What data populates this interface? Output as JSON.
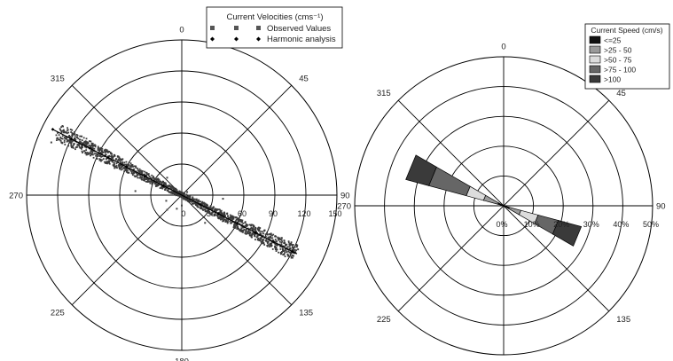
{
  "chart_data": [
    {
      "type": "scatter",
      "coordinate_system": "polar",
      "legend": {
        "title": "Current Velocities (cms⁻¹)",
        "placement": "top-right",
        "entries": [
          "Observed Values",
          "Harmonic analysis"
        ]
      },
      "direction_labels": [
        "0",
        "45",
        "90",
        "135",
        "180",
        "225",
        "270",
        "315"
      ],
      "radial_tick_labels": [
        "0",
        "30",
        "60",
        "90",
        "120",
        "150"
      ],
      "radial_range": [
        0,
        150
      ],
      "grid": true,
      "principal_axis_deg": 117,
      "series": [
        {
          "name": "Observed Values",
          "color": "#444444",
          "points": [
            [
              292,
              136
            ],
            [
              296,
              118
            ],
            [
              293,
              100
            ],
            [
              297,
              84
            ],
            [
              292,
              70
            ],
            [
              299,
              56
            ],
            [
              294,
              42
            ],
            [
              302,
              30
            ],
            [
              290,
              20
            ],
            [
              305,
              12
            ],
            [
              316,
              7
            ],
            [
              60,
              6
            ],
            [
              110,
              8
            ],
            [
              118,
              18
            ],
            [
              114,
              30
            ],
            [
              120,
              42
            ],
            [
              116,
              54
            ],
            [
              119,
              66
            ],
            [
              115,
              78
            ],
            [
              121,
              90
            ],
            [
              116,
              102
            ],
            [
              119,
              114
            ],
            [
              115,
              124
            ],
            [
              180,
              10
            ],
            [
              200,
              14
            ],
            [
              250,
              16
            ],
            [
              320,
              22
            ],
            [
              140,
              35
            ],
            [
              95,
              40
            ],
            [
              275,
              45
            ],
            [
              225,
              20
            ]
          ]
        },
        {
          "name": "Harmonic analysis",
          "color": "#000000",
          "points": [
            [
              297,
              140
            ],
            [
              297,
              120
            ],
            [
              297,
              100
            ],
            [
              297,
              80
            ],
            [
              297,
              60
            ],
            [
              297,
              40
            ],
            [
              297,
              20
            ],
            [
              117,
              20
            ],
            [
              117,
              40
            ],
            [
              117,
              60
            ],
            [
              117,
              80
            ],
            [
              117,
              100
            ],
            [
              117,
              120
            ]
          ]
        }
      ]
    },
    {
      "type": "rose",
      "coordinate_system": "polar",
      "legend": {
        "title": "Current Speed (cm/s)",
        "placement": "top-right",
        "entries": [
          "<=25",
          ">25 - 50",
          ">50 - 75",
          ">75 - 100",
          ">100"
        ]
      },
      "bin_colors": [
        "#111111",
        "#9a9a9a",
        "#dcdcdc",
        "#666666",
        "#3a3a3a"
      ],
      "direction_labels": [
        "0",
        "45",
        "90",
        "135",
        "180",
        "225",
        "270",
        "315"
      ],
      "radial_tick_labels": [
        "0%",
        "10%",
        "20%",
        "30%",
        "40%",
        "50%"
      ],
      "radial_range": [
        0,
        50
      ],
      "grid": true,
      "petals": [
        {
          "direction": 292.5,
          "cumulative_percent": [
            2,
            7,
            13,
            26,
            34
          ]
        },
        {
          "direction": 112.5,
          "cumulative_percent": [
            2,
            6,
            12,
            19,
            27
          ]
        }
      ]
    }
  ]
}
